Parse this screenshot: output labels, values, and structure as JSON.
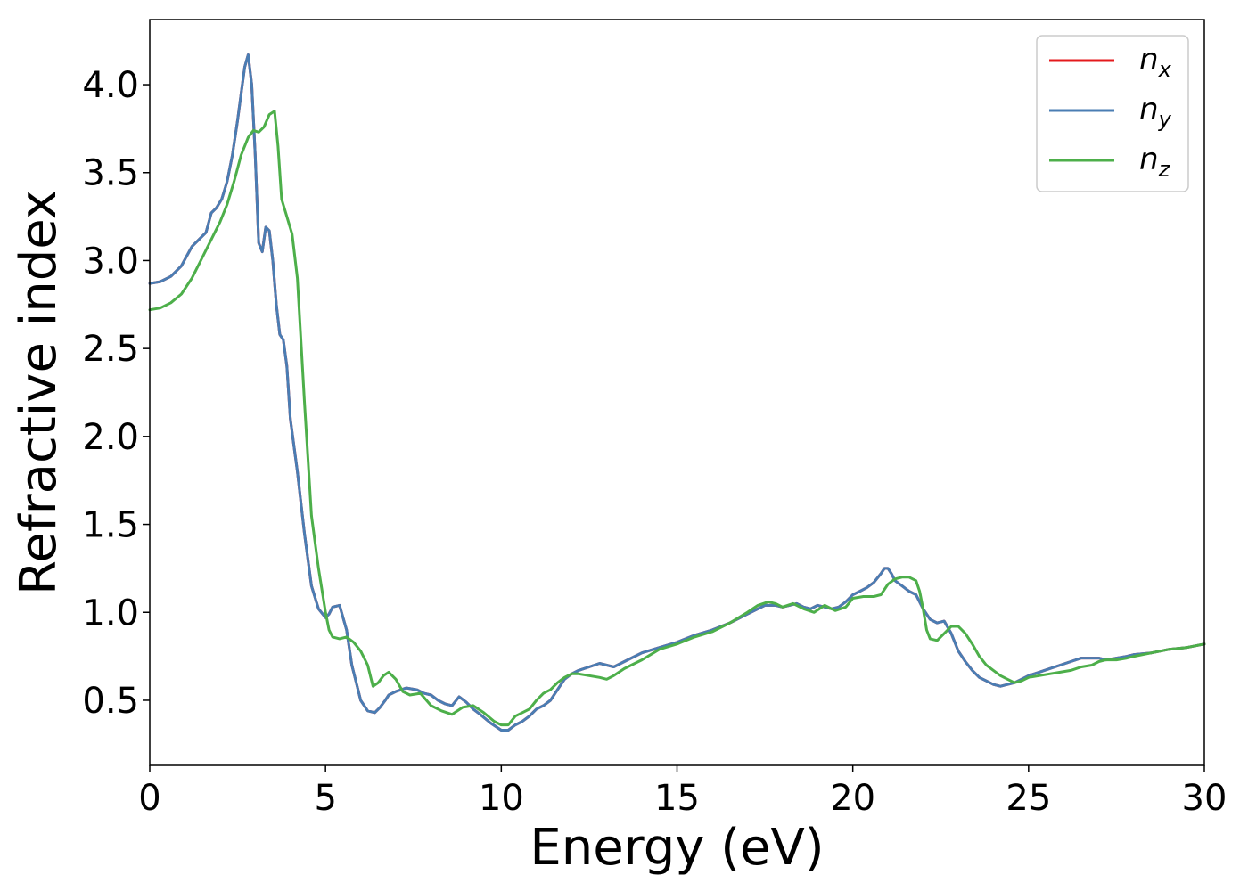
{
  "chart_data": {
    "type": "line",
    "title": "",
    "xlabel": "Energy (eV)",
    "ylabel": "Refractive index",
    "xlim": [
      0,
      30
    ],
    "ylim": [
      0.13,
      4.37
    ],
    "xticks": [
      0,
      5,
      10,
      15,
      20,
      25,
      30
    ],
    "xtick_labels": [
      "0",
      "5",
      "10",
      "15",
      "20",
      "25",
      "30"
    ],
    "yticks": [
      0.5,
      1.0,
      1.5,
      2.0,
      2.5,
      3.0,
      3.5,
      4.0
    ],
    "ytick_labels": [
      "0.5",
      "1.0",
      "1.5",
      "2.0",
      "2.5",
      "3.0",
      "3.5",
      "4.0"
    ],
    "grid": false,
    "legend_position": "top-right",
    "series": [
      {
        "name": "n",
        "subscript": "x",
        "color": "#e41a1c",
        "x": [
          0,
          0.3,
          0.6,
          0.9,
          1.2,
          1.4,
          1.6,
          1.75,
          1.9,
          2.05,
          2.2,
          2.35,
          2.5,
          2.6,
          2.7,
          2.8,
          2.9,
          3.0,
          3.1,
          3.2,
          3.3,
          3.4,
          3.5,
          3.6,
          3.7,
          3.8,
          3.9,
          4.0,
          4.2,
          4.4,
          4.6,
          4.8,
          5.0,
          5.1,
          5.2,
          5.4,
          5.6,
          5.75,
          5.9,
          6.0,
          6.2,
          6.4,
          6.55,
          6.7,
          6.8,
          7.0,
          7.3,
          7.6,
          7.8,
          8.0,
          8.2,
          8.4,
          8.6,
          8.8,
          9.0,
          9.2,
          9.4,
          9.7,
          10.0,
          10.2,
          10.4,
          10.6,
          10.8,
          11.0,
          11.2,
          11.4,
          11.6,
          11.8,
          12.0,
          12.2,
          12.5,
          12.8,
          13.0,
          13.2,
          13.5,
          13.8,
          14.0,
          14.5,
          15.0,
          15.5,
          16.0,
          16.5,
          17.0,
          17.5,
          17.8,
          18.0,
          18.2,
          18.4,
          18.6,
          18.8,
          19.0,
          19.2,
          19.4,
          19.6,
          19.8,
          20.0,
          20.2,
          20.4,
          20.6,
          20.8,
          20.9,
          21.0,
          21.1,
          21.2,
          21.4,
          21.6,
          21.8,
          22.0,
          22.2,
          22.4,
          22.6,
          22.8,
          23.0,
          23.2,
          23.4,
          23.6,
          23.8,
          24.0,
          24.2,
          24.4,
          24.6,
          24.8,
          25.0,
          25.3,
          25.6,
          25.9,
          26.2,
          26.5,
          26.8,
          27.0,
          27.2,
          27.5,
          27.8,
          28.0,
          28.5,
          29.0,
          29.5,
          30.0
        ],
        "y": [
          2.87,
          2.88,
          2.91,
          2.97,
          3.08,
          3.12,
          3.16,
          3.27,
          3.3,
          3.35,
          3.45,
          3.6,
          3.8,
          3.95,
          4.1,
          4.17,
          4.0,
          3.6,
          3.1,
          3.05,
          3.19,
          3.17,
          3.0,
          2.75,
          2.58,
          2.55,
          2.4,
          2.1,
          1.8,
          1.45,
          1.15,
          1.02,
          0.97,
          0.99,
          1.03,
          1.04,
          0.9,
          0.7,
          0.58,
          0.5,
          0.44,
          0.43,
          0.46,
          0.5,
          0.53,
          0.55,
          0.57,
          0.56,
          0.54,
          0.53,
          0.5,
          0.48,
          0.47,
          0.52,
          0.49,
          0.45,
          0.42,
          0.37,
          0.33,
          0.33,
          0.36,
          0.38,
          0.41,
          0.45,
          0.47,
          0.5,
          0.56,
          0.62,
          0.65,
          0.67,
          0.69,
          0.71,
          0.7,
          0.69,
          0.72,
          0.75,
          0.77,
          0.8,
          0.83,
          0.87,
          0.9,
          0.94,
          0.99,
          1.04,
          1.04,
          1.03,
          1.04,
          1.05,
          1.03,
          1.02,
          1.04,
          1.03,
          1.02,
          1.03,
          1.06,
          1.1,
          1.12,
          1.14,
          1.17,
          1.22,
          1.25,
          1.25,
          1.22,
          1.18,
          1.15,
          1.12,
          1.1,
          1.02,
          0.96,
          0.94,
          0.95,
          0.88,
          0.78,
          0.72,
          0.67,
          0.63,
          0.61,
          0.59,
          0.58,
          0.59,
          0.6,
          0.62,
          0.64,
          0.66,
          0.68,
          0.7,
          0.72,
          0.74,
          0.74,
          0.74,
          0.73,
          0.74,
          0.75,
          0.76,
          0.77,
          0.79,
          0.8,
          0.82
        ]
      },
      {
        "name": "n",
        "subscript": "y",
        "color": "#4a7db3",
        "x": [
          0,
          0.3,
          0.6,
          0.9,
          1.2,
          1.4,
          1.6,
          1.75,
          1.9,
          2.05,
          2.2,
          2.35,
          2.5,
          2.6,
          2.7,
          2.8,
          2.9,
          3.0,
          3.1,
          3.2,
          3.3,
          3.4,
          3.5,
          3.6,
          3.7,
          3.8,
          3.9,
          4.0,
          4.2,
          4.4,
          4.6,
          4.8,
          5.0,
          5.1,
          5.2,
          5.4,
          5.6,
          5.75,
          5.9,
          6.0,
          6.2,
          6.4,
          6.55,
          6.7,
          6.8,
          7.0,
          7.3,
          7.6,
          7.8,
          8.0,
          8.2,
          8.4,
          8.6,
          8.8,
          9.0,
          9.2,
          9.4,
          9.7,
          10.0,
          10.2,
          10.4,
          10.6,
          10.8,
          11.0,
          11.2,
          11.4,
          11.6,
          11.8,
          12.0,
          12.2,
          12.5,
          12.8,
          13.0,
          13.2,
          13.5,
          13.8,
          14.0,
          14.5,
          15.0,
          15.5,
          16.0,
          16.5,
          17.0,
          17.5,
          17.8,
          18.0,
          18.2,
          18.4,
          18.6,
          18.8,
          19.0,
          19.2,
          19.4,
          19.6,
          19.8,
          20.0,
          20.2,
          20.4,
          20.6,
          20.8,
          20.9,
          21.0,
          21.1,
          21.2,
          21.4,
          21.6,
          21.8,
          22.0,
          22.2,
          22.4,
          22.6,
          22.8,
          23.0,
          23.2,
          23.4,
          23.6,
          23.8,
          24.0,
          24.2,
          24.4,
          24.6,
          24.8,
          25.0,
          25.3,
          25.6,
          25.9,
          26.2,
          26.5,
          26.8,
          27.0,
          27.2,
          27.5,
          27.8,
          28.0,
          28.5,
          29.0,
          29.5,
          30.0
        ],
        "y": [
          2.87,
          2.88,
          2.91,
          2.97,
          3.08,
          3.12,
          3.16,
          3.27,
          3.3,
          3.35,
          3.45,
          3.6,
          3.8,
          3.95,
          4.1,
          4.17,
          4.0,
          3.6,
          3.1,
          3.05,
          3.19,
          3.17,
          3.0,
          2.75,
          2.58,
          2.55,
          2.4,
          2.1,
          1.8,
          1.45,
          1.15,
          1.02,
          0.97,
          0.99,
          1.03,
          1.04,
          0.9,
          0.7,
          0.58,
          0.5,
          0.44,
          0.43,
          0.46,
          0.5,
          0.53,
          0.55,
          0.57,
          0.56,
          0.54,
          0.53,
          0.5,
          0.48,
          0.47,
          0.52,
          0.49,
          0.45,
          0.42,
          0.37,
          0.33,
          0.33,
          0.36,
          0.38,
          0.41,
          0.45,
          0.47,
          0.5,
          0.56,
          0.62,
          0.65,
          0.67,
          0.69,
          0.71,
          0.7,
          0.69,
          0.72,
          0.75,
          0.77,
          0.8,
          0.83,
          0.87,
          0.9,
          0.94,
          0.99,
          1.04,
          1.04,
          1.03,
          1.04,
          1.05,
          1.03,
          1.02,
          1.04,
          1.03,
          1.02,
          1.03,
          1.06,
          1.1,
          1.12,
          1.14,
          1.17,
          1.22,
          1.25,
          1.25,
          1.22,
          1.18,
          1.15,
          1.12,
          1.1,
          1.02,
          0.96,
          0.94,
          0.95,
          0.88,
          0.78,
          0.72,
          0.67,
          0.63,
          0.61,
          0.59,
          0.58,
          0.59,
          0.6,
          0.62,
          0.64,
          0.66,
          0.68,
          0.7,
          0.72,
          0.74,
          0.74,
          0.74,
          0.73,
          0.74,
          0.75,
          0.76,
          0.77,
          0.79,
          0.8,
          0.82
        ]
      },
      {
        "name": "n",
        "subscript": "z",
        "color": "#4daf4a",
        "x": [
          0,
          0.3,
          0.6,
          0.9,
          1.2,
          1.5,
          1.8,
          2.0,
          2.2,
          2.4,
          2.6,
          2.8,
          2.95,
          3.1,
          3.25,
          3.4,
          3.55,
          3.65,
          3.75,
          3.9,
          4.05,
          4.2,
          4.4,
          4.6,
          4.8,
          5.0,
          5.1,
          5.2,
          5.4,
          5.6,
          5.8,
          6.0,
          6.2,
          6.35,
          6.5,
          6.65,
          6.8,
          7.0,
          7.2,
          7.4,
          7.7,
          8.0,
          8.3,
          8.6,
          8.9,
          9.2,
          9.5,
          9.8,
          10.0,
          10.2,
          10.4,
          10.6,
          10.8,
          11.0,
          11.2,
          11.4,
          11.6,
          11.8,
          12.0,
          12.2,
          12.5,
          12.8,
          13.0,
          13.2,
          13.5,
          13.8,
          14.0,
          14.5,
          15.0,
          15.5,
          16.0,
          16.5,
          17.0,
          17.3,
          17.6,
          17.8,
          18.0,
          18.3,
          18.6,
          18.9,
          19.2,
          19.5,
          19.8,
          20.0,
          20.3,
          20.6,
          20.8,
          21.0,
          21.2,
          21.4,
          21.6,
          21.8,
          21.9,
          22.0,
          22.1,
          22.2,
          22.4,
          22.6,
          22.8,
          23.0,
          23.2,
          23.4,
          23.6,
          23.8,
          24.0,
          24.2,
          24.4,
          24.6,
          24.8,
          25.0,
          25.3,
          25.6,
          25.9,
          26.2,
          26.5,
          26.8,
          27.0,
          27.2,
          27.5,
          27.8,
          28.0,
          28.5,
          29.0,
          29.5,
          30.0
        ],
        "y": [
          2.72,
          2.73,
          2.76,
          2.81,
          2.9,
          3.02,
          3.14,
          3.22,
          3.32,
          3.45,
          3.6,
          3.7,
          3.74,
          3.73,
          3.76,
          3.83,
          3.85,
          3.65,
          3.35,
          3.25,
          3.15,
          2.9,
          2.2,
          1.55,
          1.25,
          1.0,
          0.9,
          0.86,
          0.85,
          0.86,
          0.83,
          0.78,
          0.7,
          0.58,
          0.6,
          0.64,
          0.66,
          0.62,
          0.55,
          0.53,
          0.54,
          0.47,
          0.44,
          0.42,
          0.46,
          0.47,
          0.43,
          0.38,
          0.36,
          0.36,
          0.41,
          0.43,
          0.45,
          0.5,
          0.54,
          0.56,
          0.6,
          0.63,
          0.65,
          0.65,
          0.64,
          0.63,
          0.62,
          0.64,
          0.68,
          0.71,
          0.73,
          0.79,
          0.82,
          0.86,
          0.89,
          0.94,
          1.0,
          1.04,
          1.06,
          1.05,
          1.03,
          1.05,
          1.02,
          1.0,
          1.04,
          1.01,
          1.03,
          1.08,
          1.09,
          1.09,
          1.1,
          1.16,
          1.19,
          1.2,
          1.2,
          1.18,
          1.12,
          1.02,
          0.9,
          0.85,
          0.84,
          0.88,
          0.92,
          0.92,
          0.88,
          0.82,
          0.75,
          0.7,
          0.67,
          0.64,
          0.62,
          0.6,
          0.61,
          0.63,
          0.64,
          0.65,
          0.66,
          0.67,
          0.69,
          0.7,
          0.72,
          0.73,
          0.73,
          0.74,
          0.75,
          0.77,
          0.79,
          0.8,
          0.82
        ]
      }
    ]
  }
}
